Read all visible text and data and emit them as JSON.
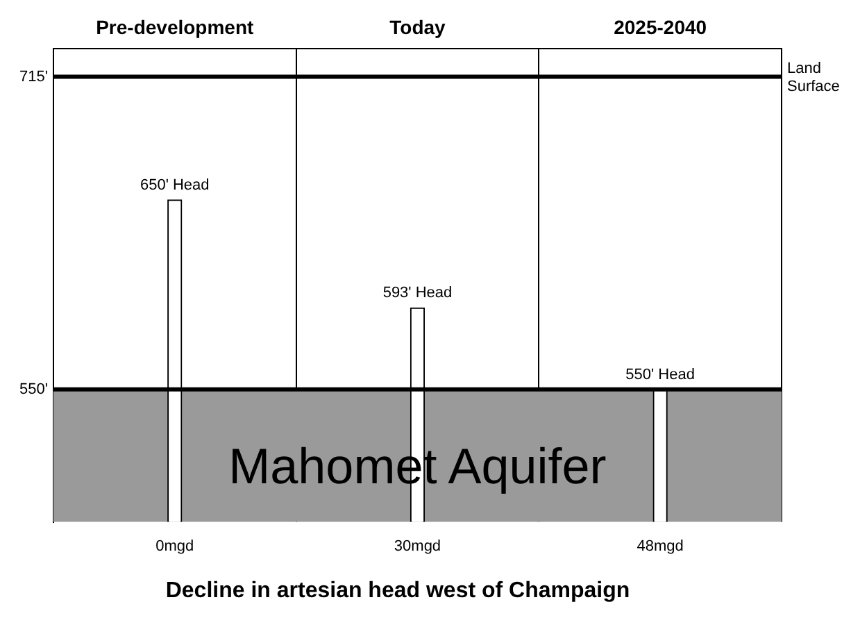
{
  "chart_data": {
    "type": "bar",
    "title": "Decline in artesian head west of Champaign",
    "categories": [
      "Pre-development",
      "Today",
      "2025-2040"
    ],
    "values": [
      650,
      593,
      550
    ],
    "color": "#ffffff",
    "value_labels": [
      "650' Head",
      "593' Head",
      "550' Head"
    ],
    "ylim": [
      480,
      730
    ],
    "yticks": [
      {
        "value": 550,
        "label": "550'"
      },
      {
        "value": 715,
        "label": "715'"
      }
    ],
    "ref_lines": [
      {
        "axis": "y",
        "value": 715,
        "label": "Land Surface",
        "color": "#000000"
      },
      {
        "axis": "y",
        "value": 550,
        "label": null,
        "color": "#000000"
      }
    ],
    "bands": [
      {
        "axis": "y",
        "from": 480,
        "to": 550,
        "label": "Mahomet Aquifer",
        "color": "#9a9a9a"
      }
    ],
    "annotations": [
      "0mgd",
      "30mgd",
      "48mgd"
    ],
    "grid": "x",
    "legend": false
  }
}
